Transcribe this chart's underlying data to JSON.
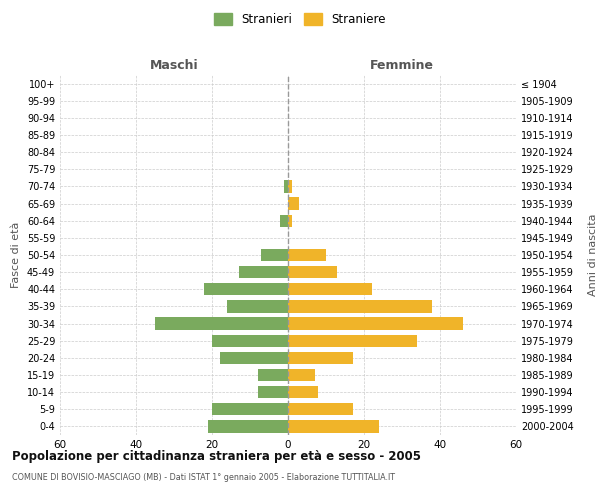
{
  "age_groups": [
    "100+",
    "95-99",
    "90-94",
    "85-89",
    "80-84",
    "75-79",
    "70-74",
    "65-69",
    "60-64",
    "55-59",
    "50-54",
    "45-49",
    "40-44",
    "35-39",
    "30-34",
    "25-29",
    "20-24",
    "15-19",
    "10-14",
    "5-9",
    "0-4"
  ],
  "birth_years": [
    "≤ 1904",
    "1905-1909",
    "1910-1914",
    "1915-1919",
    "1920-1924",
    "1925-1929",
    "1930-1934",
    "1935-1939",
    "1940-1944",
    "1945-1949",
    "1950-1954",
    "1955-1959",
    "1960-1964",
    "1965-1969",
    "1970-1974",
    "1975-1979",
    "1980-1984",
    "1985-1989",
    "1990-1994",
    "1995-1999",
    "2000-2004"
  ],
  "males": [
    0,
    0,
    0,
    0,
    0,
    0,
    1,
    0,
    2,
    0,
    7,
    13,
    22,
    16,
    35,
    20,
    18,
    8,
    8,
    20,
    21
  ],
  "females": [
    0,
    0,
    0,
    0,
    0,
    0,
    1,
    3,
    1,
    0,
    10,
    13,
    22,
    38,
    46,
    34,
    17,
    7,
    8,
    17,
    24
  ],
  "male_color": "#7aaa5e",
  "female_color": "#f0b429",
  "title": "Popolazione per cittadinanza straniera per età e sesso - 2005",
  "subtitle": "COMUNE DI BOVISIO-MASCIAGO (MB) - Dati ISTAT 1° gennaio 2005 - Elaborazione TUTTITALIA.IT",
  "ylabel_left": "Fasce di età",
  "ylabel_right": "Anni di nascita",
  "xlabel_left": "Maschi",
  "xlabel_right": "Femmine",
  "legend_male": "Stranieri",
  "legend_female": "Straniere",
  "xlim": 60,
  "background_color": "#ffffff",
  "grid_color": "#cccccc"
}
